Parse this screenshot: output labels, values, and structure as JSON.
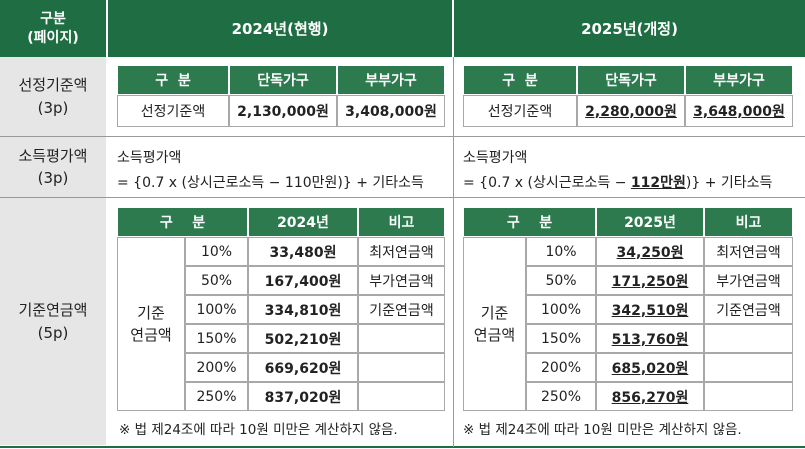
{
  "header": {
    "category": "구분",
    "category_sub": "(페이지)",
    "col2024": "2024년(현행)",
    "col2025": "2025년(개정)"
  },
  "rows": [
    {
      "name": "선정기준액",
      "page": "(3p)"
    },
    {
      "name": "소득평가액",
      "page": "(3p)"
    },
    {
      "name": "기준연금액",
      "page": "(5p)"
    }
  ],
  "selection": {
    "headers": [
      "구  분",
      "단독가구",
      "부부가구"
    ],
    "label": "선정기준액",
    "v2024": [
      "2,130,000원",
      "3,408,000원"
    ],
    "v2025": [
      "2,280,000원",
      "3,648,000원"
    ]
  },
  "income": {
    "title": "소득평가액",
    "f2024": "= {0.7 x (상시근로소득 − 110만원)} + 기타소득",
    "f2025_pre": "= {0.7 x (상시근로소득 − ",
    "f2025_bold": "112만원",
    "f2025_post": ")} + 기타소득"
  },
  "pension": {
    "h2024": [
      "구    분",
      "2024년",
      "비고"
    ],
    "h2025": [
      "구    분",
      "2025년",
      "비고"
    ],
    "group1": "기준",
    "group2": "연금액",
    "percents": [
      "10%",
      "50%",
      "100%",
      "150%",
      "200%",
      "250%"
    ],
    "v2024": [
      "33,480원",
      "167,400원",
      "334,810원",
      "502,210원",
      "669,620원",
      "837,020원"
    ],
    "v2025": [
      "34,250원",
      "171,250원",
      "342,510원",
      "513,760원",
      "685,020원",
      "856,270원"
    ],
    "notes": [
      "최저연금액",
      "부가연금액",
      "기준연금액",
      "",
      "",
      ""
    ],
    "footnote": "※ 법 제24조에 따라 10원 미만은 계산하지 않음."
  }
}
